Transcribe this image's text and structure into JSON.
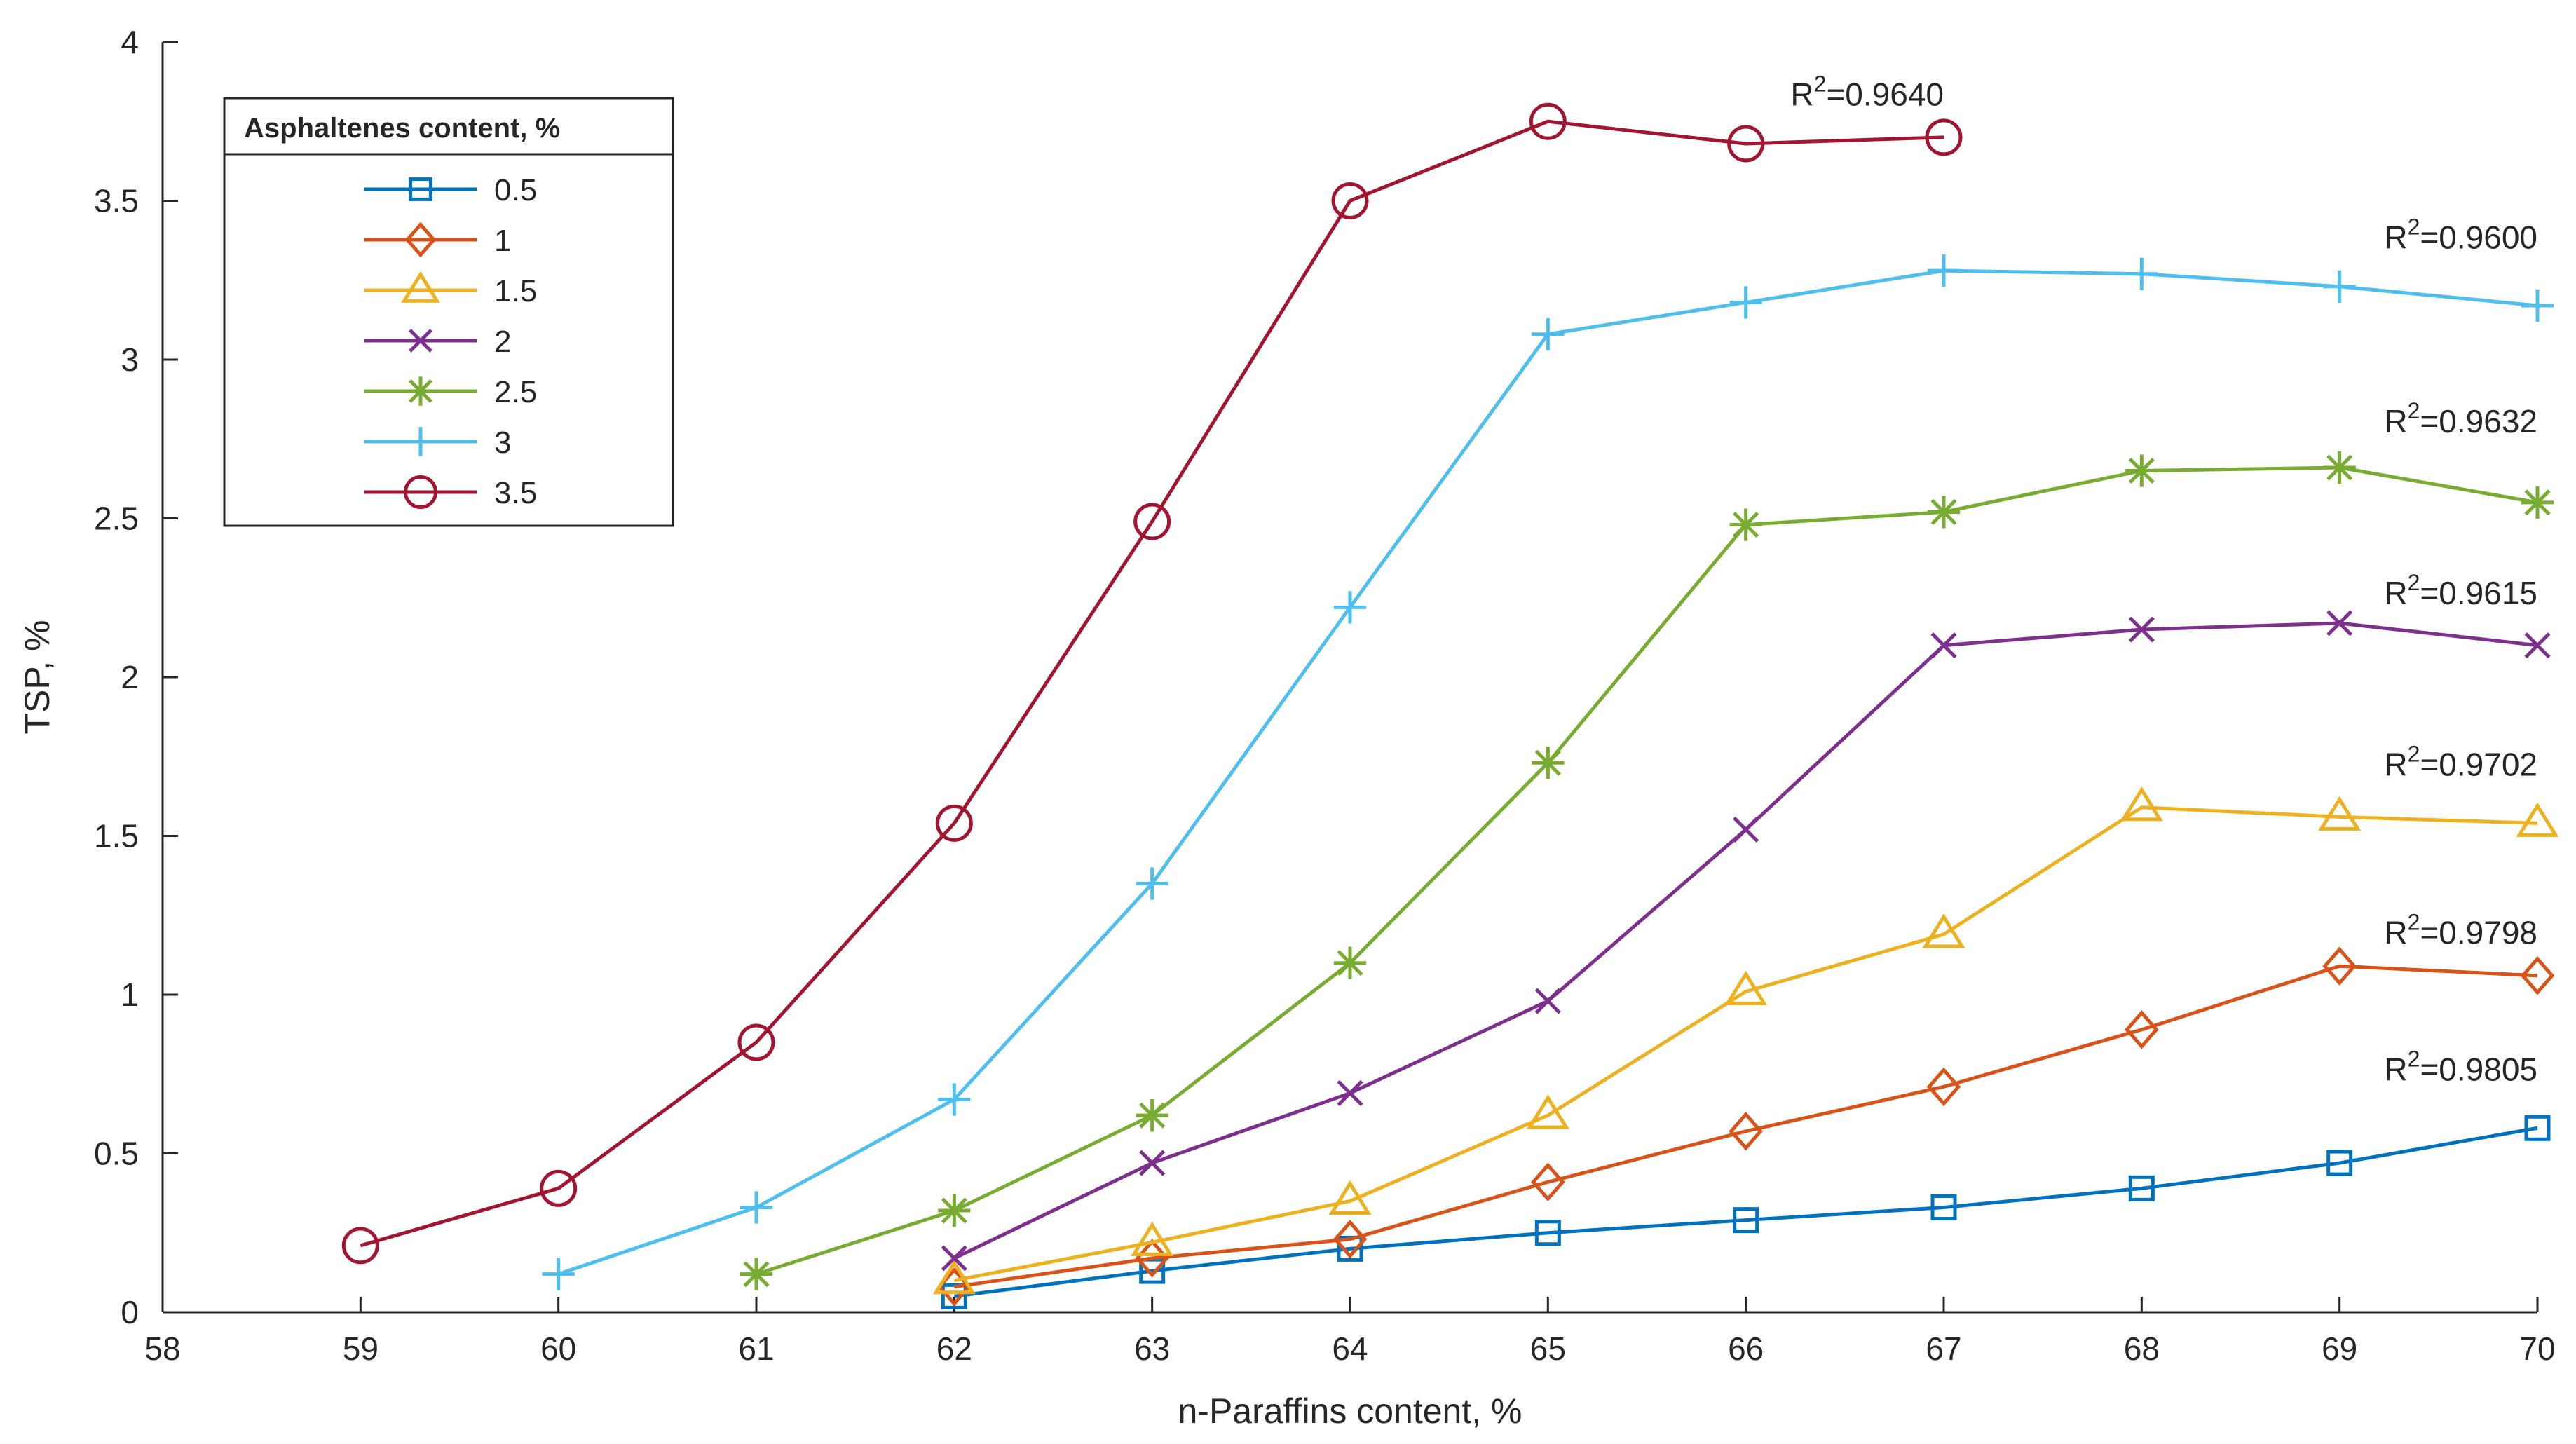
{
  "chart_data": {
    "type": "line",
    "title": "",
    "xlabel": "n-Paraffins content, %",
    "ylabel": "TSP, %",
    "xlim": [
      58,
      70
    ],
    "ylim": [
      0,
      4
    ],
    "grid": false,
    "x_ticks": [
      58,
      59,
      60,
      61,
      62,
      63,
      64,
      65,
      66,
      67,
      68,
      69,
      70
    ],
    "y_ticks": [
      0,
      0.5,
      1,
      1.5,
      2,
      2.5,
      3,
      3.5,
      4
    ],
    "y_tick_labels": [
      "0",
      "0.5",
      "1",
      "1.5",
      "2",
      "2.5",
      "3",
      "3.5",
      "4"
    ],
    "legend": {
      "title": "Asphaltenes content, %",
      "position": "top-left"
    },
    "series": [
      {
        "name": "0.5",
        "color": "#0072BD",
        "marker": "square",
        "x": [
          62,
          63,
          64,
          65,
          66,
          67,
          68,
          69,
          70
        ],
        "y": [
          0.05,
          0.13,
          0.2,
          0.25,
          0.29,
          0.33,
          0.39,
          0.47,
          0.58
        ]
      },
      {
        "name": "1",
        "color": "#D95319",
        "marker": "diamond",
        "x": [
          62,
          63,
          64,
          65,
          66,
          67,
          68,
          69,
          70
        ],
        "y": [
          0.08,
          0.17,
          0.23,
          0.41,
          0.57,
          0.71,
          0.89,
          1.09,
          1.06
        ]
      },
      {
        "name": "1.5",
        "color": "#EDB120",
        "marker": "triangle",
        "x": [
          62,
          63,
          64,
          65,
          66,
          67,
          68,
          69,
          70
        ],
        "y": [
          0.1,
          0.22,
          0.35,
          0.62,
          1.01,
          1.19,
          1.59,
          1.56,
          1.54
        ]
      },
      {
        "name": "2",
        "color": "#7E2F8E",
        "marker": "x",
        "x": [
          62,
          63,
          64,
          65,
          66,
          67,
          68,
          69,
          70
        ],
        "y": [
          0.17,
          0.47,
          0.69,
          0.98,
          1.52,
          2.1,
          2.15,
          2.17,
          2.1
        ]
      },
      {
        "name": "2.5",
        "color": "#77AC30",
        "marker": "asterisk",
        "x": [
          61,
          62,
          63,
          64,
          65,
          66,
          67,
          68,
          69,
          70
        ],
        "y": [
          0.12,
          0.32,
          0.62,
          1.1,
          1.73,
          2.48,
          2.52,
          2.65,
          2.66,
          2.55
        ]
      },
      {
        "name": "3",
        "color": "#4DBEEE",
        "marker": "plus",
        "x": [
          60,
          61,
          62,
          63,
          64,
          65,
          66,
          67,
          68,
          69,
          70
        ],
        "y": [
          0.12,
          0.33,
          0.67,
          1.35,
          2.22,
          3.08,
          3.18,
          3.28,
          3.27,
          3.23,
          3.17
        ]
      },
      {
        "name": "3.5",
        "color": "#A2142F",
        "marker": "circle",
        "x": [
          59,
          60,
          61,
          62,
          63,
          64,
          65,
          66,
          67
        ],
        "y": [
          0.21,
          0.39,
          0.85,
          1.54,
          2.49,
          3.5,
          3.75,
          3.68,
          3.7
        ]
      }
    ],
    "annotations": [
      {
        "prefix": "R",
        "sup": "2",
        "value": "=0.9640",
        "x": 67.0,
        "y": 3.8
      },
      {
        "prefix": "R",
        "sup": "2",
        "value": "=0.9600",
        "x": 70.0,
        "y": 3.35
      },
      {
        "prefix": "R",
        "sup": "2",
        "value": "=0.9632",
        "x": 70.0,
        "y": 2.77
      },
      {
        "prefix": "R",
        "sup": "2",
        "value": "=0.9615",
        "x": 70.0,
        "y": 2.23
      },
      {
        "prefix": "R",
        "sup": "2",
        "value": "=0.9702",
        "x": 70.0,
        "y": 1.69
      },
      {
        "prefix": "R",
        "sup": "2",
        "value": "=0.9798",
        "x": 70.0,
        "y": 1.16
      },
      {
        "prefix": "R",
        "sup": "2",
        "value": "=0.9805",
        "x": 70.0,
        "y": 0.73
      }
    ]
  }
}
